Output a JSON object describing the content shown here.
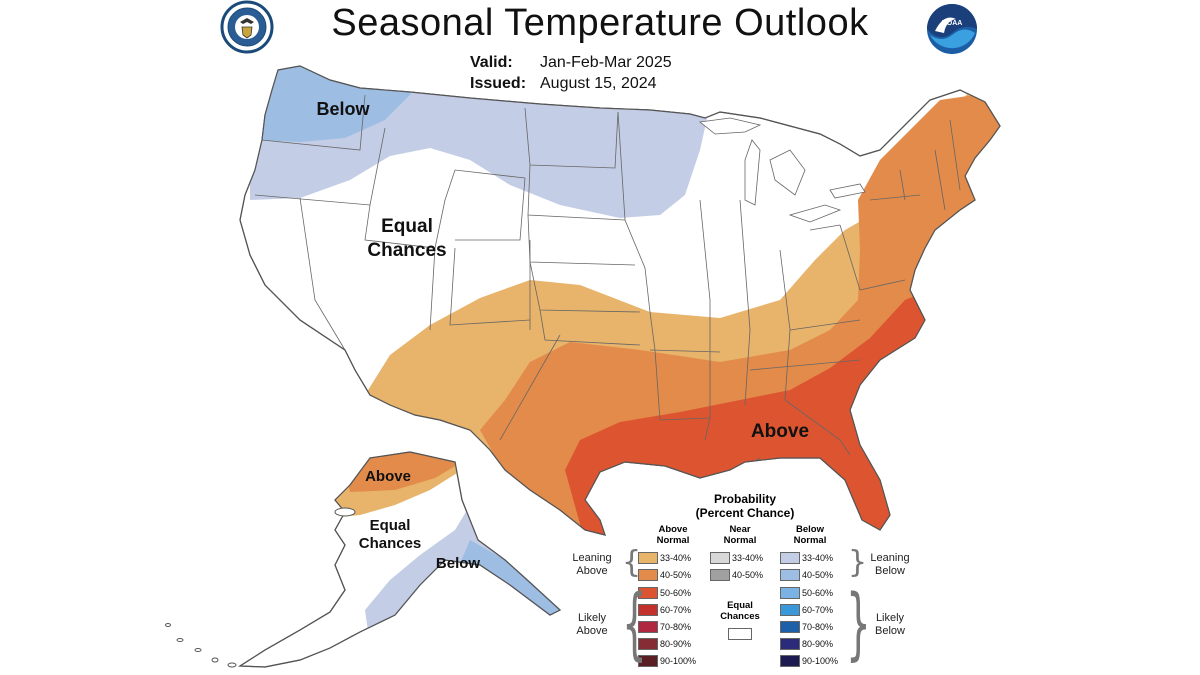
{
  "header": {
    "title": "Seasonal Temperature Outlook",
    "valid_label": "Valid:",
    "valid_value": "Jan-Feb-Mar 2025",
    "issued_label": "Issued:",
    "issued_value": "August 15, 2024"
  },
  "map": {
    "labels": {
      "below_nw": "Below",
      "equal_1": "Equal",
      "equal_2": "Chances",
      "above_se": "Above",
      "ak_above": "Above",
      "ak_equal_1": "Equal",
      "ak_equal_2": "Chances",
      "ak_below": "Below"
    },
    "colors": {
      "above_33_40": "#e8b36a",
      "above_40_50": "#e38b4a",
      "above_50_60": "#dc5530",
      "below_33_40": "#c4cde6",
      "below_40_50": "#9dbde3",
      "land": "#ffffff",
      "border": "#555555"
    }
  },
  "legend": {
    "title_1": "Probability",
    "title_2": "(Percent Chance)",
    "above_head_1": "Above",
    "above_head_2": "Normal",
    "near_head_1": "Near",
    "near_head_2": "Normal",
    "below_head_1": "Below",
    "below_head_2": "Normal",
    "leaning_above_1": "Leaning",
    "leaning_above_2": "Above",
    "likely_above_1": "Likely",
    "likely_above_2": "Above",
    "leaning_below_1": "Leaning",
    "leaning_below_2": "Below",
    "likely_below_1": "Likely",
    "likely_below_2": "Below",
    "equal_1": "Equal",
    "equal_2": "Chances",
    "above": [
      {
        "range": "33-40%",
        "color": "#e8b36a"
      },
      {
        "range": "40-50%",
        "color": "#e38b4a"
      },
      {
        "range": "50-60%",
        "color": "#dc5530"
      },
      {
        "range": "60-70%",
        "color": "#c4302b"
      },
      {
        "range": "70-80%",
        "color": "#b02840"
      },
      {
        "range": "80-90%",
        "color": "#862c35"
      },
      {
        "range": "90-100%",
        "color": "#5a1f24"
      }
    ],
    "near": [
      {
        "range": "33-40%",
        "color": "#d8d8d8"
      },
      {
        "range": "40-50%",
        "color": "#a0a0a0"
      }
    ],
    "below": [
      {
        "range": "33-40%",
        "color": "#c4cde6"
      },
      {
        "range": "40-50%",
        "color": "#9dbde3"
      },
      {
        "range": "50-60%",
        "color": "#7ab3e3"
      },
      {
        "range": "60-70%",
        "color": "#3a97d8"
      },
      {
        "range": "70-80%",
        "color": "#1d5fa8"
      },
      {
        "range": "80-90%",
        "color": "#2c2a7a"
      },
      {
        "range": "90-100%",
        "color": "#1c1a4e"
      }
    ]
  }
}
